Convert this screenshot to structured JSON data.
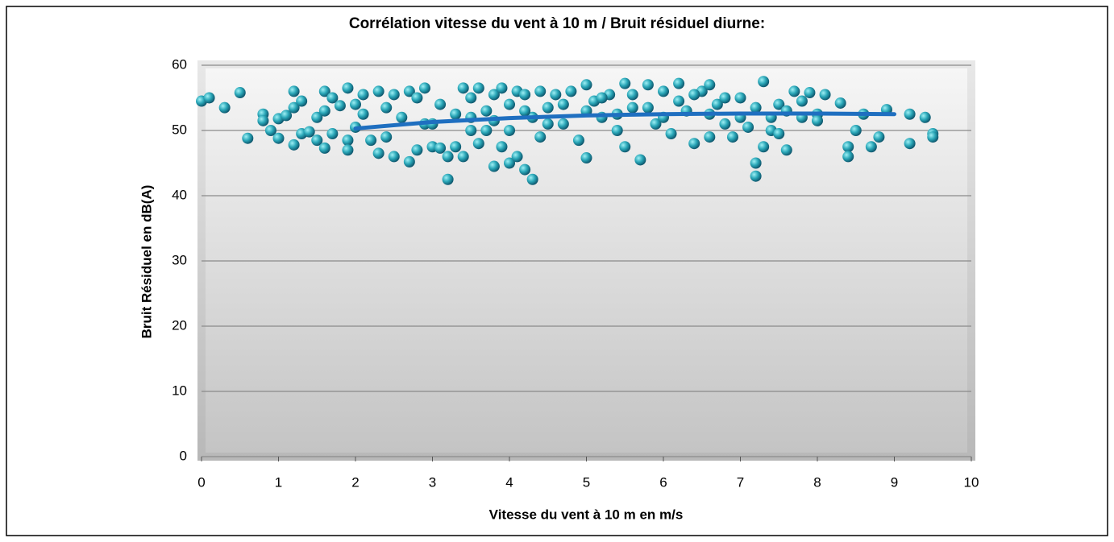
{
  "chart_data": {
    "type": "scatter",
    "title": "Corrélation vitesse du vent à 10 m / Bruit résiduel diurne:",
    "xlabel": "Vitesse du vent à 10 m en m/s",
    "ylabel": "Bruit Résiduel en dB(A)",
    "xlim": [
      0,
      10
    ],
    "ylim": [
      0,
      60
    ],
    "xticks": [
      0,
      1,
      2,
      3,
      4,
      5,
      6,
      7,
      8,
      9,
      10
    ],
    "yticks": [
      0,
      10,
      20,
      30,
      40,
      50,
      60
    ],
    "grid": true,
    "series": [
      {
        "color": "#2aa7b8",
        "x": [
          0,
          0.1,
          0.3,
          0.5,
          0.6,
          0.8,
          0.8,
          0.9,
          1,
          1,
          1.1,
          1.2,
          1.2,
          1.2,
          1.3,
          1.3,
          1.4,
          1.5,
          1.5,
          1.6,
          1.6,
          1.6,
          1.7,
          1.7,
          1.8,
          1.9,
          1.9,
          1.9,
          2,
          2,
          2.1,
          2.1,
          2.2,
          2.3,
          2.3,
          2.4,
          2.4,
          2.5,
          2.5,
          2.6,
          2.7,
          2.7,
          2.8,
          2.8,
          2.9,
          2.9,
          3,
          3,
          3.1,
          3.1,
          3.2,
          3.2,
          3.3,
          3.3,
          3.4,
          3.4,
          3.5,
          3.5,
          3.6,
          3.6,
          3.7,
          3.7,
          3.8,
          3.8,
          3.9,
          3.9,
          4,
          4,
          4.1,
          4.1,
          4.2,
          4.2,
          4.3,
          4.3,
          4.4,
          4.4,
          4.5,
          4.6,
          4.7,
          4.8,
          4.9,
          5,
          5,
          5.1,
          5.2,
          5.3,
          5.4,
          5.5,
          5.5,
          5.6,
          5.7,
          5.8,
          5.9,
          6,
          6.1,
          6.2,
          6.3,
          6.4,
          6.5,
          6.6,
          6.6,
          6.7,
          6.8,
          6.9,
          7,
          7.1,
          7.2,
          7.2,
          7.3,
          7.3,
          7.4,
          7.5,
          7.5,
          7.6,
          7.7,
          7.8,
          7.9,
          8,
          8.1,
          8.3,
          8.4,
          8.4,
          8.5,
          8.6,
          8.7,
          8.8,
          8.9,
          9.2,
          9.2,
          9.4,
          9.5,
          9.5,
          3.5,
          3.8,
          4,
          4.2,
          4.5,
          4.7,
          5,
          5.2,
          5.4,
          5.6,
          5.8,
          6,
          6.2,
          6.4,
          6.6,
          6.8,
          7,
          7.2,
          7.4,
          7.6,
          7.8,
          8
        ],
        "values": [
          54.5,
          55,
          53.5,
          55.8,
          48.8,
          52.5,
          51.5,
          50,
          51.8,
          48.8,
          52.3,
          56,
          53.5,
          47.8,
          54.5,
          49.5,
          49.8,
          52,
          48.5,
          56,
          53,
          47.3,
          55,
          49.5,
          53.8,
          56.5,
          48.5,
          47,
          54,
          50.5,
          55.5,
          52.5,
          48.5,
          56,
          46.5,
          53.5,
          49,
          55.5,
          46,
          52,
          56,
          45.2,
          55,
          47,
          56.5,
          51,
          51,
          47.5,
          54,
          47.3,
          42.5,
          46,
          52.5,
          47.5,
          56.5,
          46,
          55,
          50,
          56.5,
          48,
          53,
          50,
          55.5,
          44.5,
          56.5,
          47.5,
          54,
          45,
          56,
          46,
          55.5,
          44,
          52,
          42.5,
          56,
          49,
          53.5,
          55.5,
          51,
          56,
          48.5,
          57,
          45.8,
          54.5,
          52,
          55.5,
          50,
          57.2,
          47.5,
          53.5,
          45.5,
          57,
          51,
          56,
          49.5,
          57.2,
          53,
          48,
          56,
          57,
          49,
          54,
          51,
          49,
          55,
          50.5,
          45,
          43,
          57.5,
          47.5,
          50,
          54,
          49.5,
          47,
          56,
          52,
          55.8,
          52.5,
          55.5,
          54.2,
          47.5,
          46,
          50,
          52.5,
          47.5,
          49,
          53.2,
          52.5,
          48,
          52,
          49.5,
          49,
          52,
          51.5,
          50,
          53,
          51,
          54,
          53,
          55,
          52.5,
          55.5,
          53.5,
          52,
          54.5,
          55.5,
          52.5,
          55,
          52,
          53.5,
          52,
          53,
          54.5,
          51.5
        ]
      }
    ],
    "trendline": {
      "color": "#1f6fc0",
      "x": [
        2,
        3,
        4,
        5,
        6,
        7,
        8,
        9
      ],
      "values": [
        50.3,
        51.3,
        51.9,
        52.3,
        52.5,
        52.6,
        52.6,
        52.5
      ]
    }
  }
}
